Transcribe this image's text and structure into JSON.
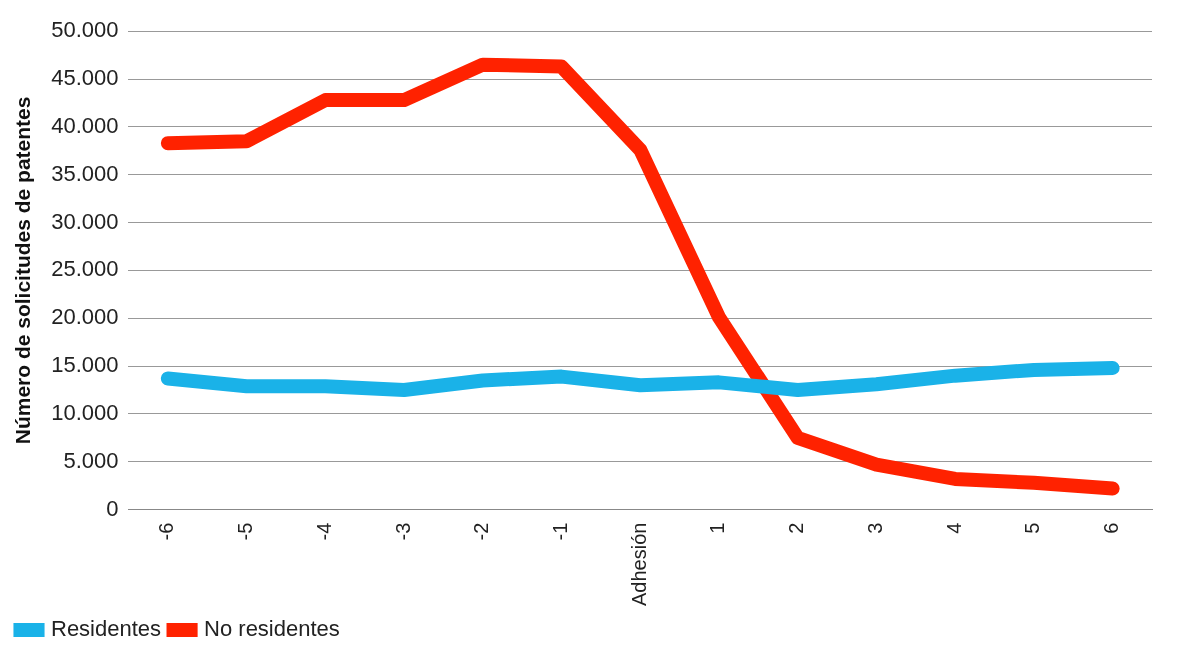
{
  "chart_data": {
    "type": "line",
    "ylabel": "Número de solicitudes de patentes",
    "categories": [
      "-6",
      "-5",
      "-4",
      "-3",
      "-2",
      "-1",
      "Adhesión",
      "1",
      "2",
      "3",
      "4",
      "5",
      "6"
    ],
    "series": [
      {
        "name": "Residentes",
        "color": "#1ab2e8",
        "values": [
          13700,
          12900,
          12900,
          12500,
          13500,
          13900,
          13000,
          13300,
          12500,
          13100,
          14000,
          14600,
          14800
        ]
      },
      {
        "name": "No residentes",
        "color": "#ff2200",
        "values": [
          38300,
          38500,
          42800,
          42800,
          46500,
          46300,
          37600,
          20100,
          7500,
          4700,
          3200,
          2800,
          2200
        ]
      }
    ],
    "ylim": [
      0,
      50000
    ],
    "yticks": [
      {
        "value": 0,
        "label": "0"
      },
      {
        "value": 5000,
        "label": "5.000"
      },
      {
        "value": 10000,
        "label": "10.000"
      },
      {
        "value": 15000,
        "label": "15.000"
      },
      {
        "value": 20000,
        "label": "20.000"
      },
      {
        "value": 25000,
        "label": "25.000"
      },
      {
        "value": 30000,
        "label": "30.000"
      },
      {
        "value": 35000,
        "label": "35.000"
      },
      {
        "value": 40000,
        "label": "40.000"
      },
      {
        "value": 45000,
        "label": "45.000"
      },
      {
        "value": 50000,
        "label": "50.000"
      }
    ],
    "grid": "y",
    "legend": "bottom left",
    "marker": "none",
    "line_style": "solid"
  }
}
